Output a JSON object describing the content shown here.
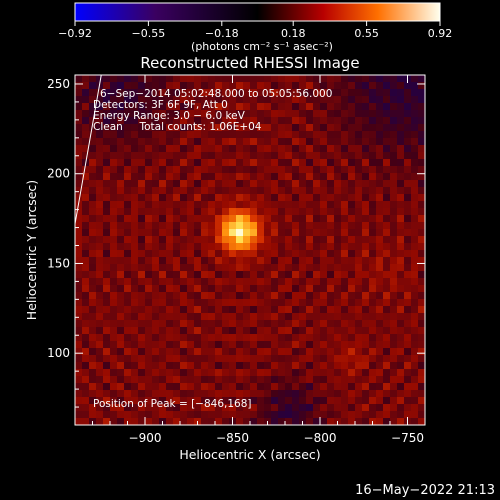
{
  "colorbar": {
    "ticks": [
      {
        "value": -0.92,
        "label": "−0.92"
      },
      {
        "value": -0.55,
        "label": "−0.55"
      },
      {
        "value": -0.18,
        "label": "−0.18"
      },
      {
        "value": 0.18,
        "label": "0.18"
      },
      {
        "value": 0.55,
        "label": "0.55"
      },
      {
        "value": 0.92,
        "label": "0.92"
      }
    ],
    "min": -0.92,
    "max": 0.92,
    "unit_label": "(photons cm⁻² s⁻¹ asec⁻²)"
  },
  "chart_data": {
    "type": "heatmap",
    "title": "Reconstructed RHESSI Image",
    "xlabel": "Heliocentric X (arcsec)",
    "ylabel": "Heliocentric Y (arcsec)",
    "xlim": [
      -940,
      -740
    ],
    "ylim": [
      60,
      255
    ],
    "x_ticks": [
      {
        "value": -900,
        "label": "−900"
      },
      {
        "value": -850,
        "label": "−850"
      },
      {
        "value": -800,
        "label": "−800"
      },
      {
        "value": -750,
        "label": "−750"
      }
    ],
    "y_ticks": [
      {
        "value": 100,
        "label": "100"
      },
      {
        "value": 150,
        "label": "150"
      },
      {
        "value": 200,
        "label": "200"
      },
      {
        "value": 250,
        "label": "250"
      }
    ],
    "peak": {
      "x": -846,
      "y": 168,
      "value": 0.92
    },
    "limb_line": [
      [
        -925,
        255
      ],
      [
        -940,
        172
      ]
    ],
    "annotations": [
      "6−Sep−2014 05:02:48.000 to 05:05:56.000",
      "Detectors: 3F 6F 9F, Att 0",
      "Energy Range: 3.0 − 6.0 keV",
      "Clean     Total counts: 1.06E+04"
    ],
    "peak_label": "Position of Peak = [−846,168]"
  },
  "footer": {
    "timestamp": "16−May−2022 21:13"
  }
}
